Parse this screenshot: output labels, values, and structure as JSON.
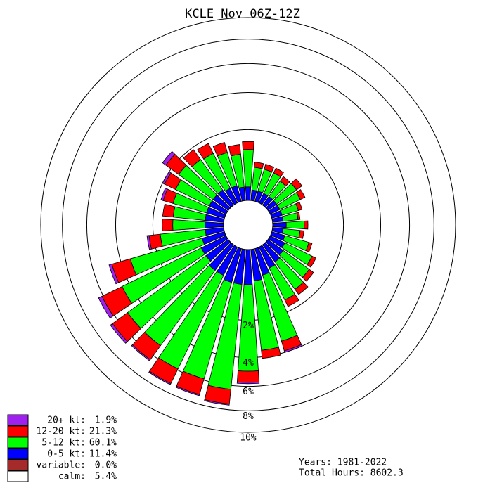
{
  "chart_data": {
    "type": "windrose",
    "title": "KCLE Nov 06Z-12Z",
    "theta": [
      0,
      10,
      20,
      30,
      40,
      50,
      60,
      70,
      80,
      90,
      100,
      110,
      120,
      130,
      140,
      150,
      160,
      170,
      180,
      190,
      200,
      210,
      220,
      230,
      240,
      250,
      260,
      270,
      280,
      290,
      300,
      310,
      320,
      330,
      340,
      350
    ],
    "series": [
      {
        "name": "0-5 kt:",
        "color": "#0000ff",
        "share": 11.4,
        "share_label": "11.4%",
        "values": [
          0.2,
          0.15,
          0.15,
          0.15,
          0.15,
          0.15,
          0.15,
          0.15,
          0.15,
          0.2,
          0.15,
          0.2,
          0.25,
          0.3,
          0.35,
          0.4,
          0.5,
          0.6,
          0.7,
          0.7,
          0.7,
          0.6,
          0.6,
          0.5,
          0.5,
          0.4,
          0.3,
          0.3,
          0.3,
          0.3,
          0.3,
          0.3,
          0.3,
          0.25,
          0.25,
          0.2
        ]
      },
      {
        "name": "5-12 kt:",
        "color": "#00ff00",
        "share": 60.1,
        "share_label": "60.1%",
        "values": [
          1.0,
          0.5,
          0.5,
          0.5,
          0.4,
          0.55,
          0.5,
          0.35,
          0.3,
          0.4,
          0.35,
          0.6,
          0.8,
          0.9,
          1.0,
          1.1,
          2.8,
          3.0,
          4.2,
          5.6,
          5.2,
          5.3,
          4.5,
          4.6,
          4.0,
          3.0,
          1.4,
          0.9,
          0.9,
          1.0,
          1.1,
          1.3,
          1.1,
          1.1,
          0.95,
          0.85
        ]
      },
      {
        "name": "12-20 kt:",
        "color": "#ff0000",
        "share": 21.3,
        "share_label": "21.3%",
        "values": [
          0.3,
          0.15,
          0.15,
          0.15,
          0.15,
          0.2,
          0.15,
          0.1,
          0.05,
          0.1,
          0.1,
          0.1,
          0.15,
          0.2,
          0.25,
          0.3,
          0.6,
          0.5,
          0.8,
          1.2,
          1.3,
          1.3,
          1.3,
          1.4,
          1.6,
          1.2,
          0.5,
          0.4,
          0.4,
          0.4,
          0.5,
          0.7,
          0.5,
          0.45,
          0.4,
          0.35
        ]
      },
      {
        "name": "20+ kt:",
        "color": "#a020f0",
        "share": 1.9,
        "share_label": "1.9%",
        "values": [
          0,
          0,
          0,
          0,
          0,
          0,
          0,
          0,
          0,
          0,
          0,
          0,
          0,
          0,
          0,
          0,
          0.1,
          0,
          0.1,
          0.1,
          0.1,
          0.1,
          0.1,
          0.2,
          0.3,
          0.2,
          0.1,
          0,
          0,
          0.1,
          0.1,
          0.2,
          0,
          0,
          0,
          0
        ]
      }
    ],
    "legend_extra": [
      {
        "name": "variable:",
        "color": "#a52a2a",
        "share": 0.0,
        "share_label": "0.0%"
      },
      {
        "name": "calm:",
        "color": "#ffffff",
        "share": 5.4,
        "share_label": "5.4%"
      }
    ],
    "rlim": [
      0,
      10
    ],
    "rticks": [
      {
        "value": 2,
        "label": "2%"
      },
      {
        "value": 4,
        "label": "4%"
      },
      {
        "value": 6,
        "label": "6%"
      },
      {
        "value": 8,
        "label": "8%"
      },
      {
        "value": 10,
        "label": "10%"
      }
    ],
    "notes": [
      "Years: 1981-2022",
      "Total Hours: 8602.3"
    ]
  }
}
